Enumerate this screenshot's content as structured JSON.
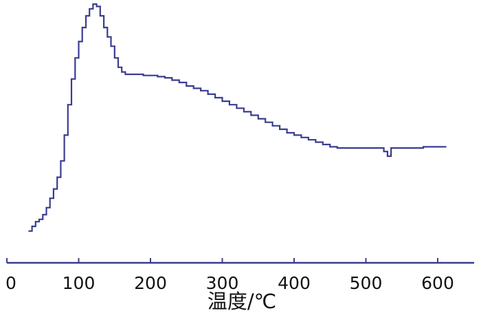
{
  "chart_data": {
    "type": "line",
    "xlabel": "温度/℃",
    "ylabel": "",
    "title": "",
    "xlim": [
      0,
      650
    ],
    "x_ticks": [
      0,
      100,
      200,
      300,
      400,
      500,
      600
    ],
    "x_tick_labels": [
      "0",
      "100",
      "200",
      "300",
      "400",
      "500",
      "600"
    ],
    "y_axis_shown": false,
    "ylim": [
      0,
      100
    ],
    "grid": false,
    "series": [
      {
        "color": "#3a3d8f",
        "x": [
          30,
          35,
          40,
          45,
          50,
          55,
          60,
          65,
          70,
          75,
          80,
          85,
          90,
          95,
          100,
          105,
          110,
          115,
          120,
          125,
          130,
          135,
          140,
          145,
          150,
          155,
          160,
          165,
          170,
          175,
          180,
          190,
          200,
          210,
          220,
          230,
          240,
          250,
          260,
          270,
          280,
          290,
          300,
          310,
          320,
          330,
          340,
          350,
          360,
          370,
          380,
          390,
          400,
          410,
          420,
          430,
          440,
          450,
          460,
          470,
          480,
          490,
          500,
          510,
          520,
          525,
          530,
          535,
          540,
          550,
          560,
          570,
          580,
          590,
          600,
          612
        ],
        "y": [
          3,
          5,
          7,
          8,
          10,
          13,
          17,
          21,
          26,
          33,
          44,
          57,
          68,
          77,
          84,
          90,
          95,
          98,
          100,
          99,
          95,
          90,
          86,
          82,
          77,
          73,
          71,
          70,
          70,
          70,
          70,
          69.5,
          69.5,
          69,
          68.5,
          67.5,
          66.5,
          65,
          64,
          63,
          61.5,
          60,
          58.5,
          57,
          55.5,
          54,
          52.5,
          51,
          49.5,
          48,
          46.5,
          45,
          44,
          43,
          42,
          41,
          40,
          39,
          38.5,
          38.5,
          38.5,
          38.5,
          38.5,
          38.5,
          38.5,
          37,
          35,
          38.5,
          38.5,
          38.5,
          38.5,
          38.5,
          39,
          39,
          39,
          39
        ]
      }
    ]
  }
}
